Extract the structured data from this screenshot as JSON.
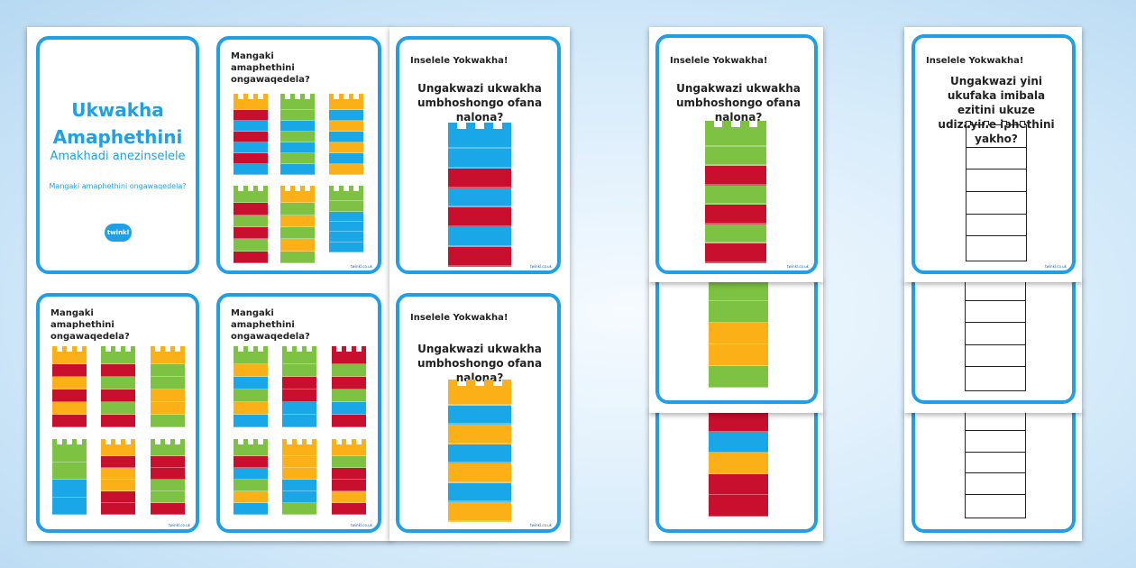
{
  "colors": {
    "red": "#c8102e",
    "green": "#7dc242",
    "blue": "#1aa7e8",
    "yellow": "#fbb018",
    "border": "#1fa0e6"
  },
  "cover": {
    "title_line1": "Ukwakha",
    "title_line2": "Amaphethini",
    "subtitle": "Amakhadi anezinselele",
    "question": "Mangaki amaphethini ongawaqedela?",
    "logo_text": "twinkl"
  },
  "count_heading": "Mangaki amaphethini ongawaqedela?",
  "challenge": {
    "header": "Inselele Yokwakha!",
    "question_copy": "Ungakwazi ukwakha umbhoshongo ofana nalona?",
    "question_design": "Ungakwazi yini ukufaka imibala ezitini ukuze udizayine iphethini yakho?"
  },
  "footer_mark": "twinkl.co.uk",
  "towers": {
    "cardA": [
      [
        "yellow",
        "red",
        "blue",
        "red",
        "blue",
        "red",
        "blue"
      ],
      [
        "green",
        "green",
        "blue",
        "green",
        "blue",
        "green",
        "blue"
      ],
      [
        "yellow",
        "blue",
        "yellow",
        "blue",
        "yellow",
        "blue",
        "yellow"
      ],
      [
        "green",
        "red",
        "green",
        "red",
        "green",
        "red"
      ],
      [
        "yellow",
        "green",
        "yellow",
        "green",
        "yellow",
        "green"
      ],
      [
        "green",
        "green",
        "blue",
        "blue",
        "blue",
        "blue"
      ]
    ],
    "cardB": [
      [
        "yellow",
        "red",
        "yellow",
        "red",
        "yellow",
        "red"
      ],
      [
        "green",
        "red",
        "green",
        "red",
        "green",
        "red"
      ],
      [
        "yellow",
        "green",
        "green",
        "yellow",
        "yellow",
        "green"
      ],
      [
        "green",
        "green",
        "blue",
        "blue"
      ],
      [
        "yellow",
        "red",
        "yellow",
        "yellow",
        "red",
        "red"
      ],
      [
        "green",
        "red",
        "red",
        "green",
        "green",
        "red"
      ]
    ],
    "cardC": [
      [
        "green",
        "yellow",
        "blue",
        "green",
        "yellow",
        "blue"
      ],
      [
        "green",
        "green",
        "red",
        "red",
        "blue",
        "blue"
      ],
      [
        "red",
        "green",
        "red",
        "green",
        "blue",
        "red"
      ],
      [
        "green",
        "red",
        "blue",
        "green",
        "yellow",
        "blue"
      ],
      [
        "yellow",
        "yellow",
        "yellow",
        "blue",
        "blue",
        "green"
      ],
      [
        "yellow",
        "green",
        "red",
        "red",
        "yellow",
        "red"
      ]
    ],
    "challenge1": [
      "blue",
      "blue",
      "red",
      "blue",
      "red",
      "blue",
      "red"
    ],
    "challenge2": [
      "yellow",
      "blue",
      "yellow",
      "blue",
      "yellow",
      "blue",
      "yellow"
    ],
    "right1": [
      "green",
      "green",
      "red",
      "green",
      "red",
      "green",
      "red"
    ],
    "right2": [
      "green",
      "green",
      "yellow",
      "yellow",
      "green"
    ],
    "right3": [
      "red",
      "blue",
      "yellow",
      "red",
      "red"
    ]
  }
}
